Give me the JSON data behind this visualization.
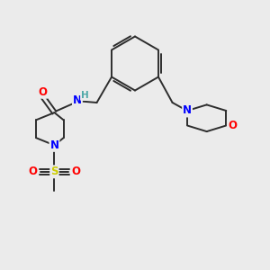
{
  "background_color": "#ebebeb",
  "bond_color": "#2d2d2d",
  "atom_colors": {
    "N": "#0000ff",
    "O": "#ff0000",
    "S": "#cccc00",
    "C": "#2d2d2d",
    "H": "#4fa8a8"
  },
  "figsize": [
    3.0,
    3.0
  ],
  "dpi": 100
}
